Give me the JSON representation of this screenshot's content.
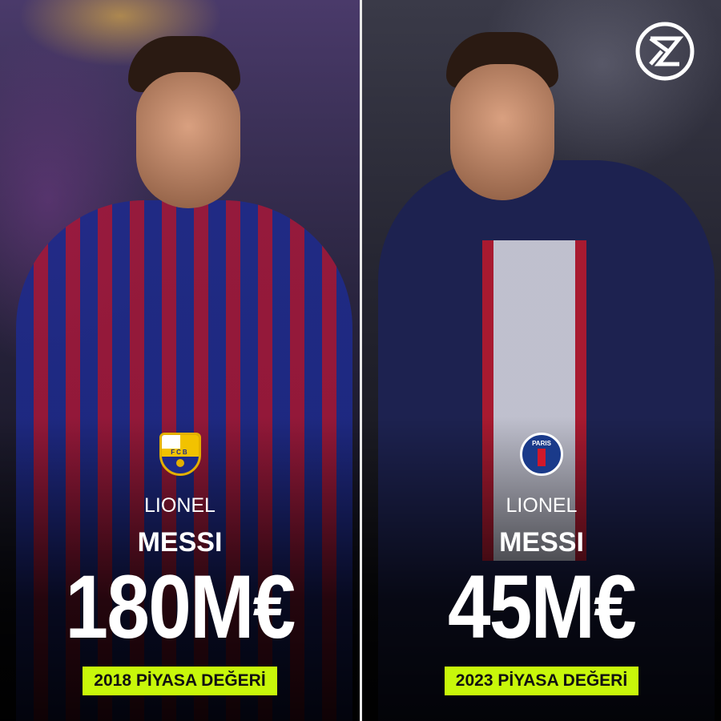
{
  "left": {
    "first_name": "LIONEL",
    "last_name": "MESSI",
    "value": "180M€",
    "label": "2018 PİYASA DEĞERİ",
    "club": "FC Barcelona",
    "crest_text": "FCB"
  },
  "right": {
    "first_name": "LIONEL",
    "last_name": "MESSI",
    "value": "45M€",
    "label": "2023 PİYASA DEĞERİ",
    "club": "Paris Saint-Germain",
    "crest_text": "PARIS"
  },
  "colors": {
    "badge": "#c8f70a",
    "text": "#ffffff",
    "divider": "#e8e8e8"
  },
  "logo": {
    "icon": "hourglass-z-logo"
  }
}
